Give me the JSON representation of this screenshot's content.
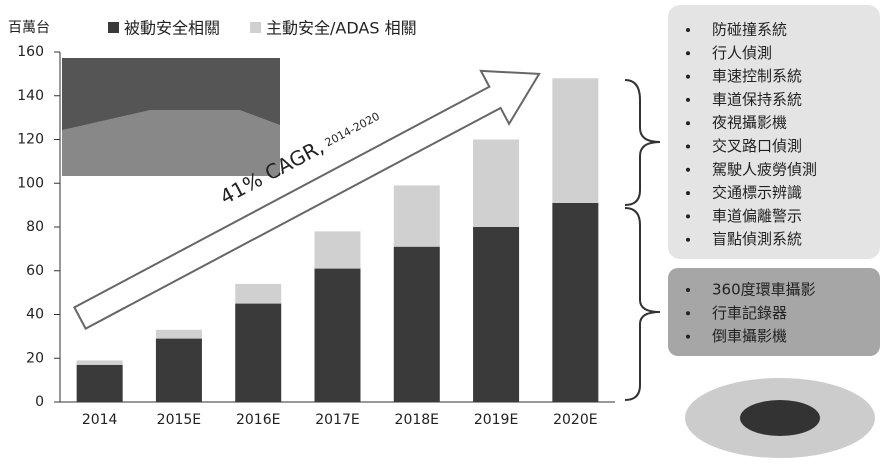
{
  "chart_data": {
    "type": "stacked-bar",
    "y_label": "百萬台",
    "categories": [
      "2014",
      "2015E",
      "2016E",
      "2017E",
      "2018E",
      "2019E",
      "2020E"
    ],
    "series": [
      {
        "name": "被動安全相關",
        "color": "#3a3a3a",
        "values": [
          17,
          29,
          45,
          61,
          71,
          80,
          91
        ]
      },
      {
        "name": "主動安全/ADAS 相關",
        "color": "#d0d0d0",
        "values": [
          2,
          4,
          9,
          17,
          28,
          40,
          57
        ]
      }
    ],
    "ylim": [
      0,
      160
    ],
    "yticks": [
      0,
      20,
      40,
      60,
      80,
      100,
      120,
      140,
      160
    ],
    "annotation": {
      "text": "41% CAGR,",
      "sub": "2014-2020"
    }
  },
  "feature_boxes": [
    {
      "items": [
        "防碰撞系統",
        "行人偵測",
        "車速控制系統",
        "車道保持系統",
        "夜視攝影機",
        "交叉路口偵測",
        "駕駛人疲勞偵測",
        "交通標示辨識",
        "車道偏離警示",
        "盲點偵測系統"
      ]
    },
    {
      "items": [
        "360度環車攝影",
        "行車記錄器",
        "倒車攝影機"
      ]
    }
  ]
}
